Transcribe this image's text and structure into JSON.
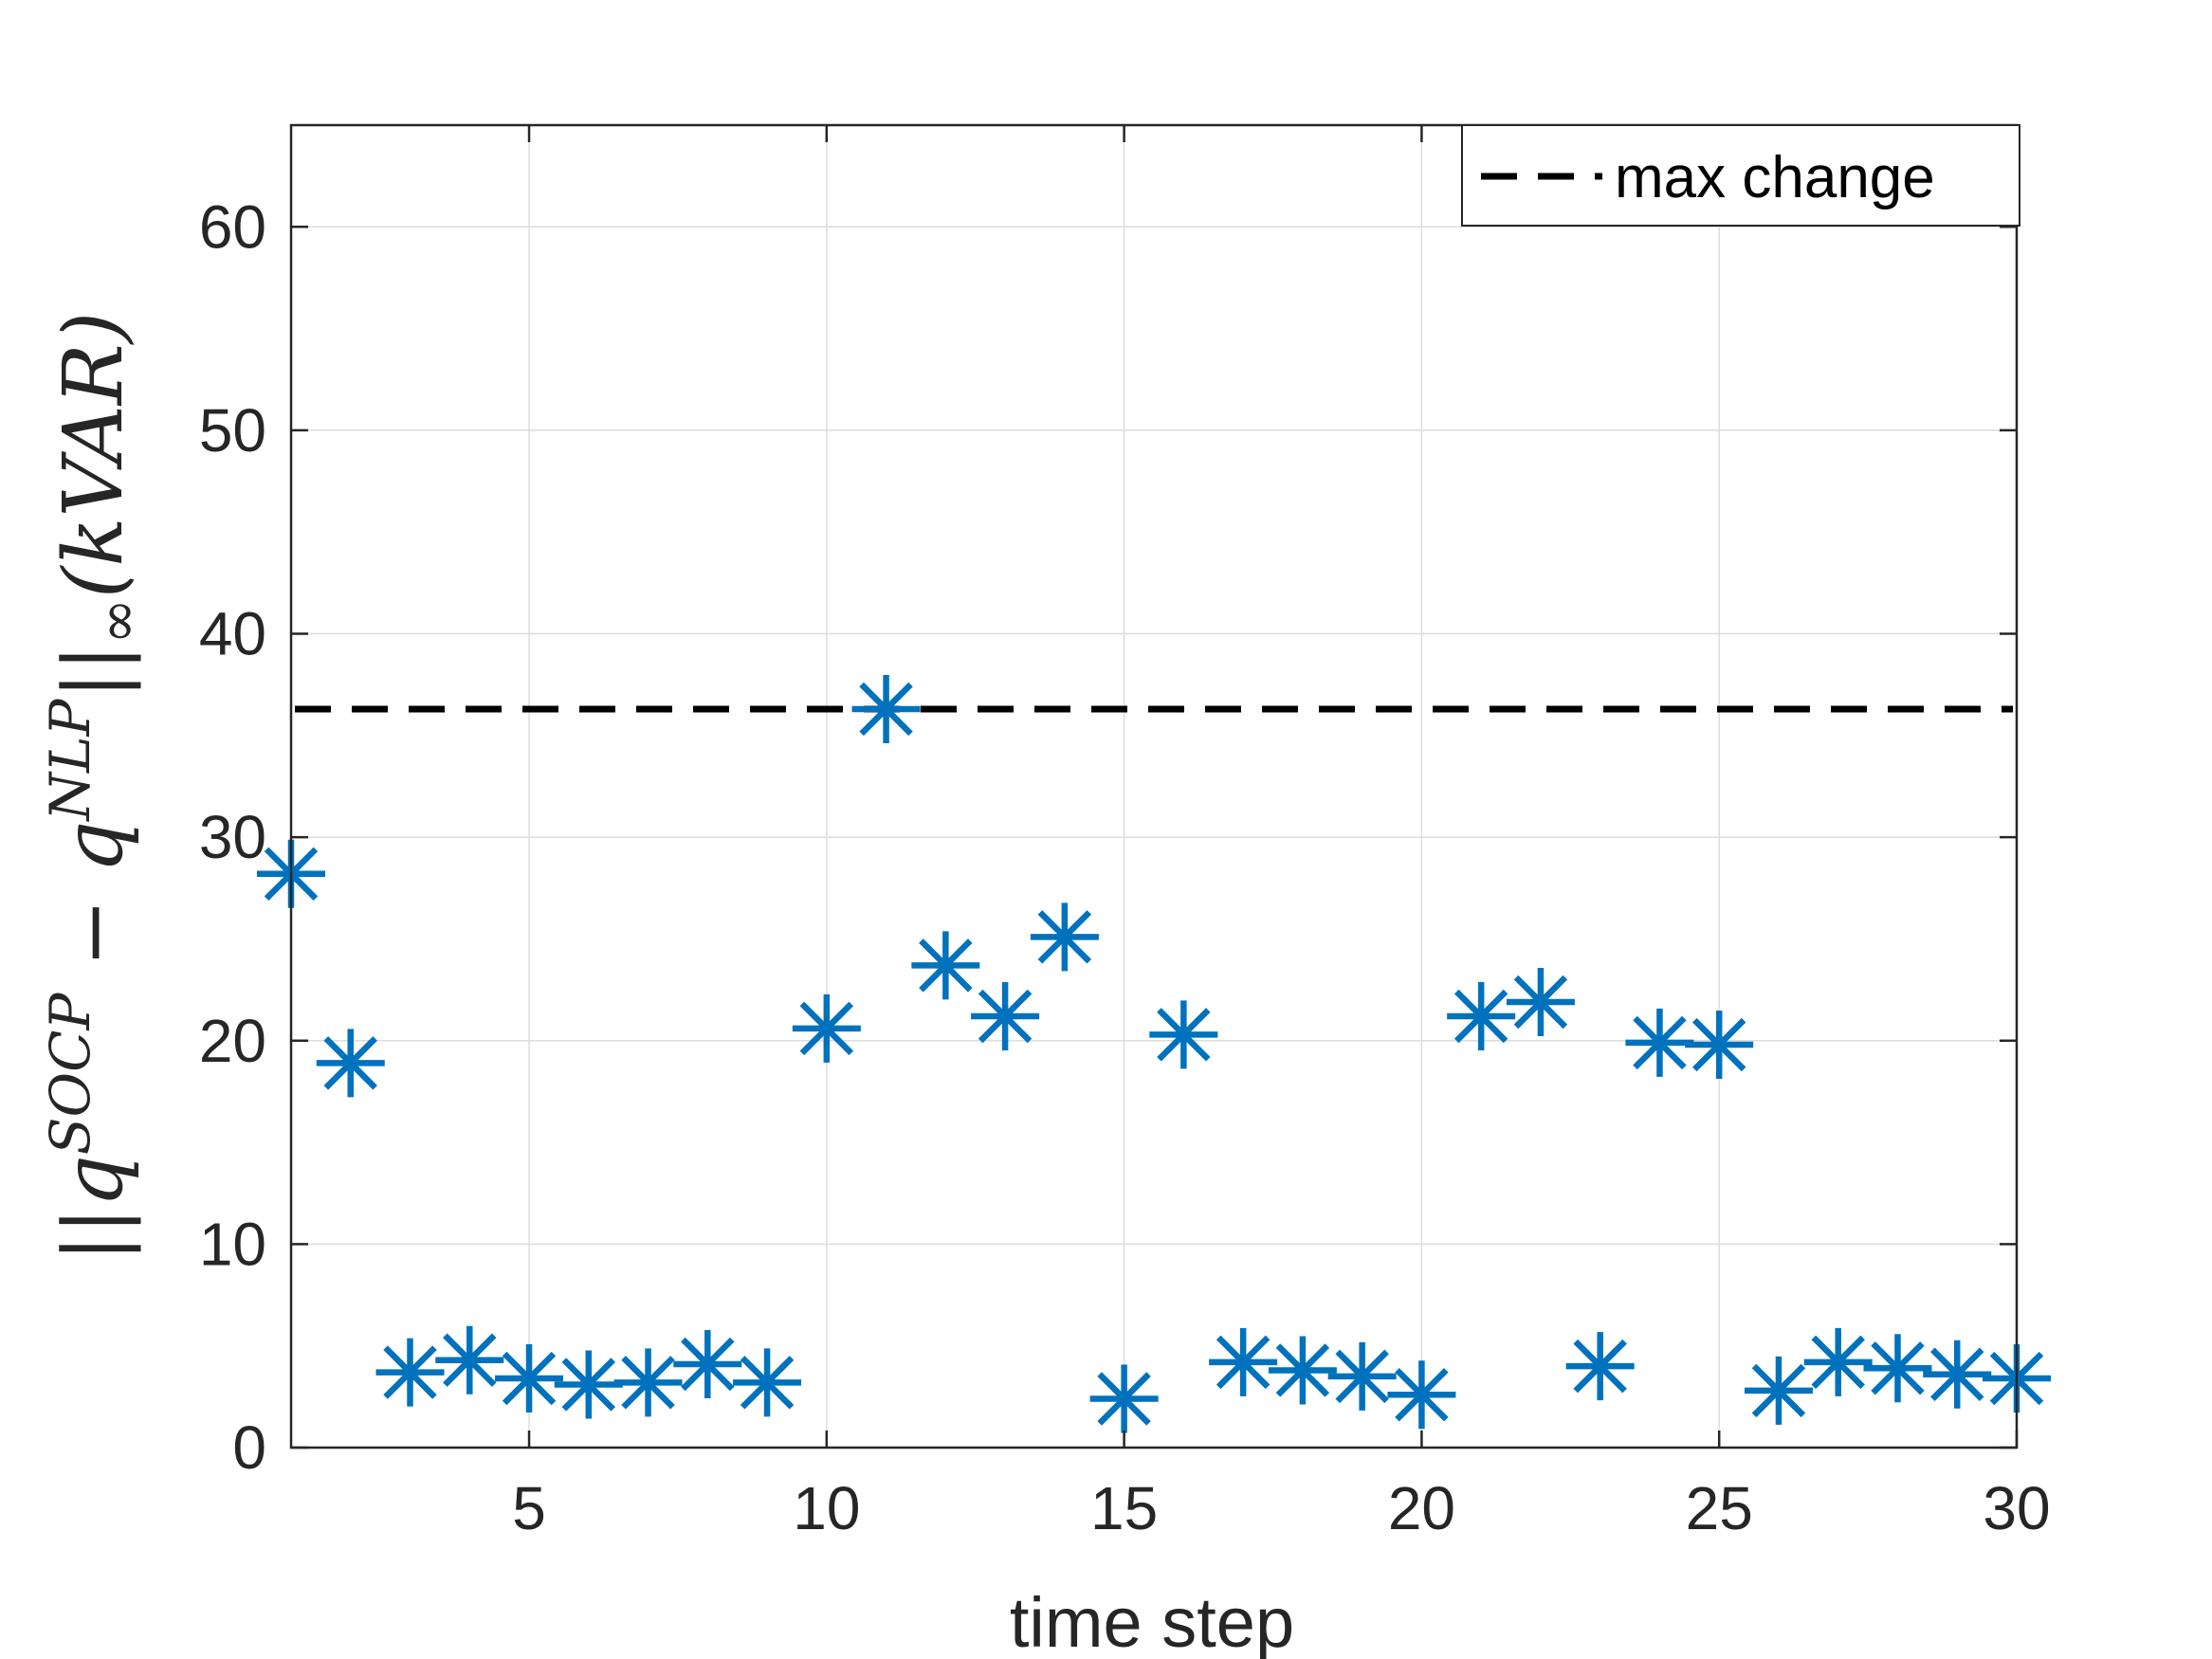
{
  "chart_data": {
    "type": "scatter",
    "xlabel": "time step",
    "ylabel": "||q^{SOCP} − q^{NLP}||_∞(kVAR)",
    "ylabel_parts": {
      "open": "||q",
      "sup1": "SOCP",
      "mid": " − q",
      "sup2": "NLP",
      "close_bars": "||",
      "sub": "∞",
      "unit": "(kVAR)"
    },
    "xlim": [
      1,
      30
    ],
    "ylim": [
      0,
      65
    ],
    "xticks": [
      5,
      10,
      15,
      20,
      25,
      30
    ],
    "yticks": [
      0,
      10,
      20,
      30,
      40,
      50,
      60
    ],
    "grid": true,
    "legend_position": "top-right",
    "series": [
      {
        "marker": "asterisk",
        "color": "#0072BD",
        "x": [
          1,
          2,
          3,
          4,
          5,
          6,
          7,
          8,
          9,
          10,
          11,
          12,
          13,
          14,
          15,
          16,
          17,
          18,
          19,
          20,
          21,
          22,
          23,
          24,
          25,
          26,
          27,
          28,
          29,
          30
        ],
        "y": [
          28.2,
          18.9,
          3.7,
          4.3,
          3.4,
          3.1,
          3.2,
          4.1,
          3.2,
          20.6,
          36.3,
          23.7,
          21.2,
          25.1,
          2.4,
          20.3,
          4.2,
          3.8,
          3.5,
          2.6,
          21.2,
          21.9,
          4.0,
          19.9,
          19.8,
          2.8,
          4.2,
          3.9,
          3.6,
          3.4
        ]
      },
      {
        "name": "max change",
        "line_style": "dashed",
        "color": "#000000",
        "y": 36.3
      }
    ]
  }
}
